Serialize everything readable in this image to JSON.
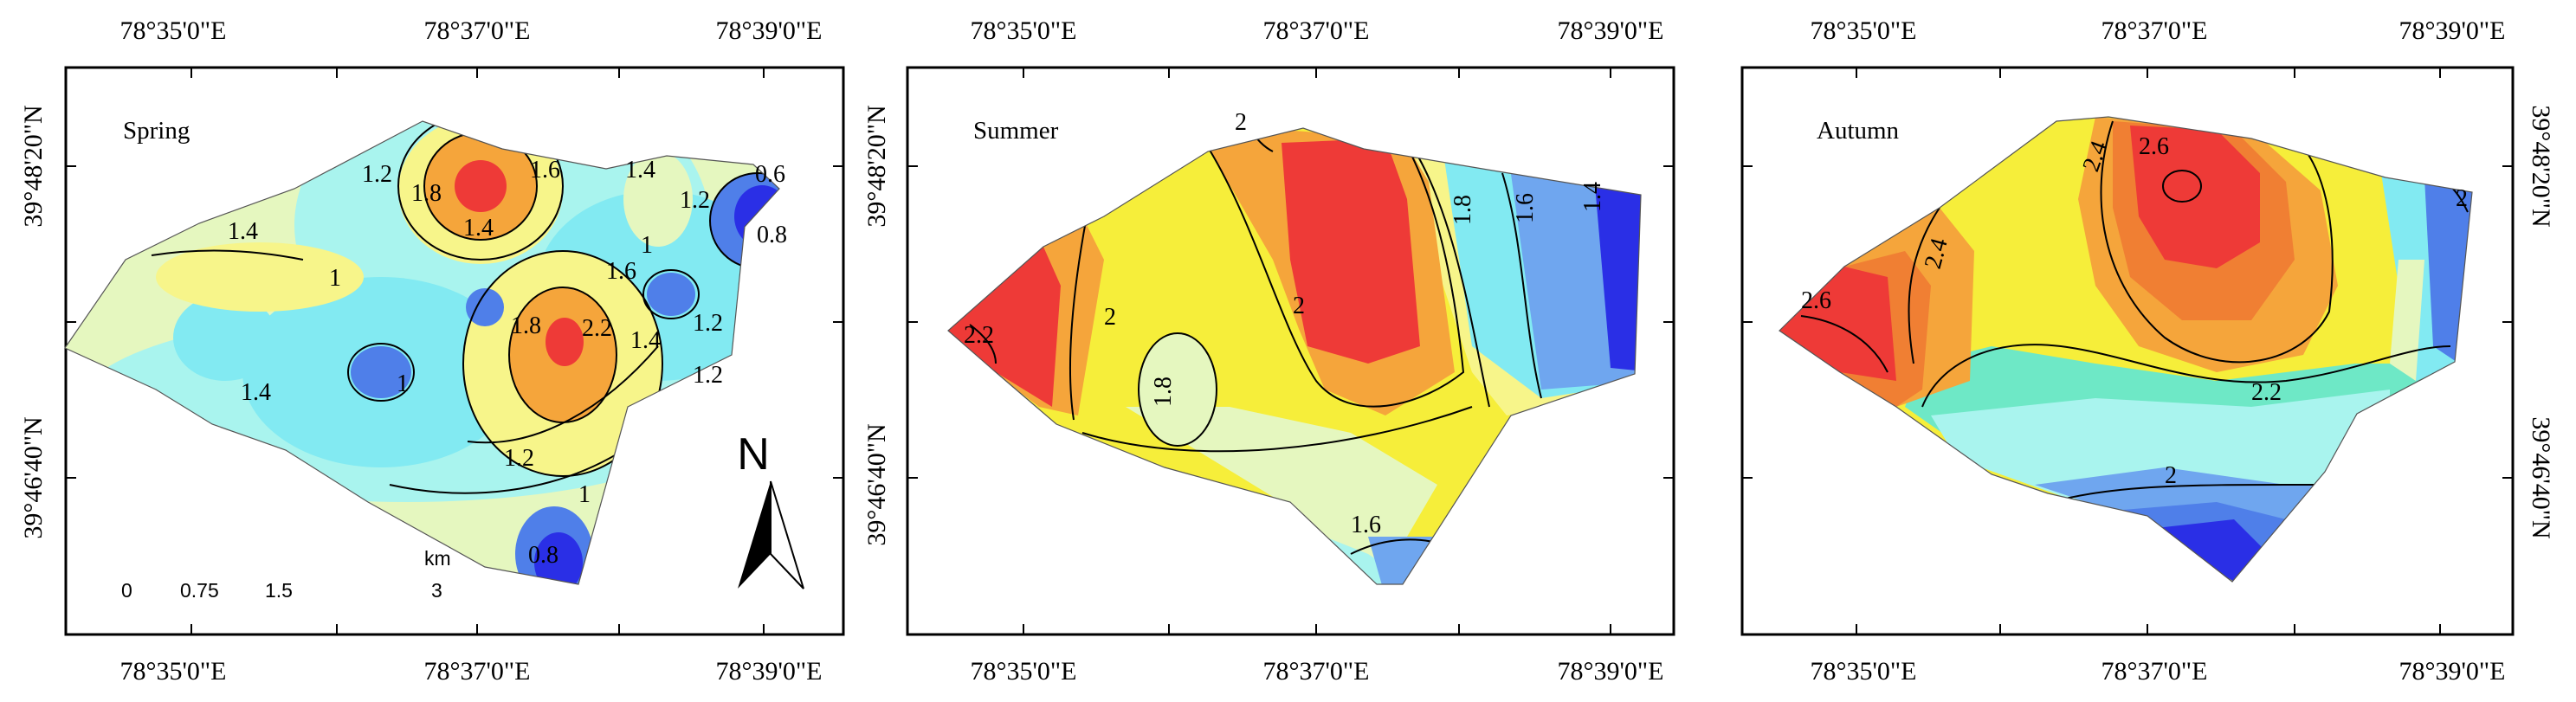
{
  "figure": {
    "panels": [
      {
        "season": "Spring",
        "lon_ticks_top": [
          "78°35'0\"E",
          "78°37'0\"E",
          "78°39'0\"E"
        ],
        "lon_ticks_bottom": [
          "78°35'0\"E",
          "78°37'0\"E",
          "78°39'0\"E"
        ],
        "lat_ticks_left": [
          "39°48'20\"N",
          "39°46'40\"N"
        ],
        "contour_labels": [
          "1.4",
          "1.2",
          "1.8",
          "1.6",
          "1.4",
          "1.2",
          "0.6",
          "0.8",
          "1.4",
          "1.8",
          "2.2",
          "1.6",
          "1.4",
          "1.2",
          "1.2",
          "1.4",
          "1",
          "1.2",
          "1",
          "0.8",
          "1",
          "1"
        ]
      },
      {
        "season": "Summer",
        "lon_ticks_top": [
          "78°35'0\"E",
          "78°37'0\"E",
          "78°39'0\"E"
        ],
        "lon_ticks_bottom": [
          "78°35'0\"E",
          "78°37'0\"E",
          "78°39'0\"E"
        ],
        "lat_ticks_left": [
          "39°48'20\"N",
          "39°46'40\"N"
        ],
        "contour_labels": [
          "2",
          "2.2",
          "2",
          "1.8",
          "2",
          "1.8",
          "1.6",
          "1.4",
          "1.6"
        ]
      },
      {
        "season": "Autumn",
        "lon_ticks_top": [
          "78°35'0\"E",
          "78°37'0\"E",
          "78°39'0\"E"
        ],
        "lon_ticks_bottom": [
          "78°35'0\"E",
          "78°37'0\"E",
          "78°39'0\"E"
        ],
        "lat_ticks_right": [
          "39°48'20\"N",
          "39°46'40\"N"
        ],
        "contour_labels": [
          "2.6",
          "2.4",
          "2.4",
          "2.6",
          "2.2",
          "2",
          "2"
        ]
      }
    ],
    "scale_bar": {
      "unit": "km",
      "ticks": [
        "0",
        "0.75",
        "1.5",
        "3"
      ]
    },
    "north_arrow": {
      "label": "N"
    },
    "colors": {
      "dark_blue": "#2a2fe6",
      "blue": "#4f7fe9",
      "mid_blue": "#6fa6ef",
      "cyan": "#82eaf2",
      "light_cyan": "#a9f4ee",
      "aqua_green": "#6ee8c6",
      "pale_yellow": "#e5f7bf",
      "light_yellow": "#f7f58a",
      "yellow": "#f6ee3a",
      "orange": "#f5a53b",
      "dark_orange": "#f07f33",
      "red": "#ee3a37"
    }
  }
}
